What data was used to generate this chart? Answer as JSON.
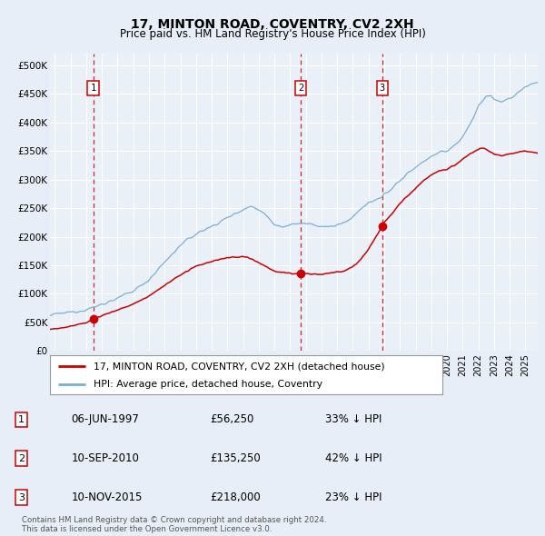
{
  "title": "17, MINTON ROAD, COVENTRY, CV2 2XH",
  "subtitle": "Price paid vs. HM Land Registry's House Price Index (HPI)",
  "ylabel_ticks": [
    "£0",
    "£50K",
    "£100K",
    "£150K",
    "£200K",
    "£250K",
    "£300K",
    "£350K",
    "£400K",
    "£450K",
    "£500K"
  ],
  "ytick_values": [
    0,
    50000,
    100000,
    150000,
    200000,
    250000,
    300000,
    350000,
    400000,
    450000,
    500000
  ],
  "ylim": [
    0,
    520000
  ],
  "xlim_start": 1994.7,
  "xlim_end": 2025.8,
  "sale_dates": [
    1997.44,
    2010.69,
    2015.86
  ],
  "sale_prices": [
    56250,
    135250,
    218000
  ],
  "sale_labels": [
    "1",
    "2",
    "3"
  ],
  "legend_red_label": "17, MINTON ROAD, COVENTRY, CV2 2XH (detached house)",
  "legend_blue_label": "HPI: Average price, detached house, Coventry",
  "table_data": [
    [
      "1",
      "06-JUN-1997",
      "£56,250",
      "33% ↓ HPI"
    ],
    [
      "2",
      "10-SEP-2010",
      "£135,250",
      "42% ↓ HPI"
    ],
    [
      "3",
      "10-NOV-2015",
      "£218,000",
      "23% ↓ HPI"
    ]
  ],
  "footer": "Contains HM Land Registry data © Crown copyright and database right 2024.\nThis data is licensed under the Open Government Licence v3.0.",
  "bg_color": "#e8eef7",
  "plot_bg_color": "#eaf0f8",
  "red_color": "#cc0000",
  "blue_color": "#7aaed4",
  "grid_color": "#ffffff"
}
